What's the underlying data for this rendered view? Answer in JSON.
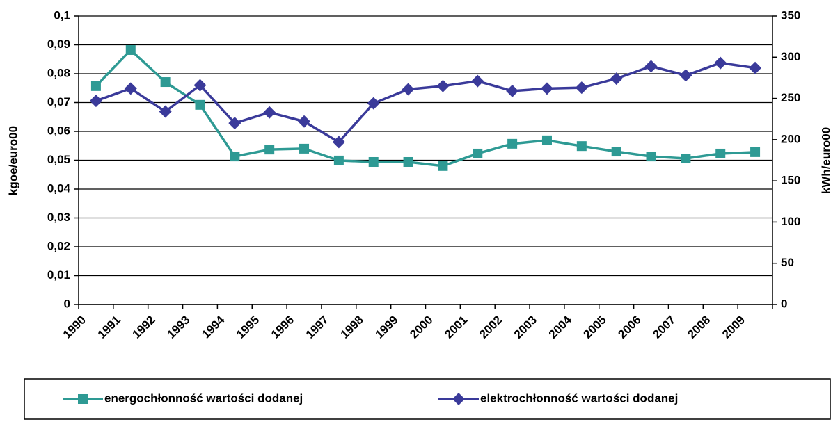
{
  "chart_data": {
    "type": "line",
    "categories": [
      "1990",
      "1991",
      "1992",
      "1993",
      "1994",
      "1995",
      "1996",
      "1997",
      "1998",
      "1999",
      "2000",
      "2001",
      "2002",
      "2003",
      "2004",
      "2005",
      "2006",
      "2007",
      "2008",
      "2009"
    ],
    "y_label": "kgoe/euro00",
    "y2_label": "kWh/euro00",
    "ylim": [
      0,
      0.1
    ],
    "yticks": [
      0,
      {
        "value": 0.01,
        "label": "0,01"
      },
      {
        "value": 0.02,
        "label": "0,02"
      },
      {
        "value": 0.03,
        "label": "0,03"
      },
      {
        "value": 0.04,
        "label": "0,04"
      },
      {
        "value": 0.05,
        "label": "0,05"
      },
      {
        "value": 0.06,
        "label": "0,06"
      },
      {
        "value": 0.07,
        "label": "0,07"
      },
      {
        "value": 0.08,
        "label": "0,08"
      },
      {
        "value": 0.09,
        "label": "0,09"
      },
      {
        "value": 0.1,
        "label": "0,1"
      }
    ],
    "y2lim": [
      0,
      350
    ],
    "y2ticks": [
      0,
      50,
      100,
      150,
      200,
      250,
      300,
      350
    ],
    "grid": true,
    "legend": "bottom",
    "series": [
      {
        "name": "energochłonność wartości dodanej",
        "color": "#2e9a94",
        "marker": "square",
        "values": [
          0.0757,
          0.0882,
          0.0771,
          0.0692,
          0.0513,
          0.0537,
          0.054,
          0.0499,
          0.0494,
          0.0494,
          0.048,
          0.0523,
          0.0557,
          0.0569,
          0.0549,
          0.053,
          0.0513,
          0.0506,
          0.0523,
          0.0528
        ]
      },
      {
        "name": "elektrochłonność wartości dodanej",
        "color": "#3a3a9a",
        "marker": "diamond",
        "axis": "y2",
        "values": [
          247,
          262,
          234,
          266,
          220,
          233,
          222,
          197,
          244,
          261,
          265,
          271,
          259,
          262,
          263,
          274,
          289,
          278,
          293,
          287
        ]
      }
    ]
  }
}
